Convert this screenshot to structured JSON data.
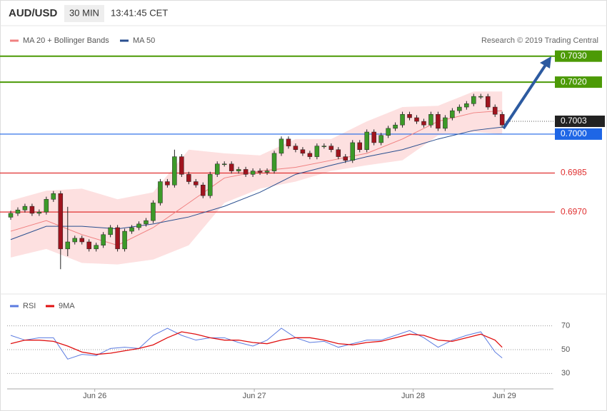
{
  "chart_data": [
    {
      "type": "candlestick",
      "title": "AUD/USD",
      "timeframe": "30 MIN",
      "time": "13:41:45 CET",
      "source": "Research © 2019 Trading Central",
      "up_color": "#3c9a28",
      "down_color": "#a0141e",
      "x": [
        0,
        1,
        2,
        3,
        4,
        5,
        6,
        7,
        8,
        9,
        10,
        11,
        12,
        13,
        14,
        15,
        16,
        17,
        18,
        19,
        20,
        21,
        22,
        23,
        24,
        25,
        26,
        27,
        28,
        29,
        30,
        31,
        32,
        33,
        34,
        35,
        36,
        37,
        38,
        39,
        40,
        41,
        42,
        43,
        44,
        45,
        46,
        47,
        48,
        49,
        50,
        51,
        52,
        53,
        54,
        55,
        56,
        57,
        58,
        59,
        60,
        61,
        62,
        63,
        64,
        65,
        66,
        67,
        68,
        69
      ],
      "open": [
        0.6968,
        0.69695,
        0.69708,
        0.69722,
        0.69695,
        0.697,
        0.69749,
        0.69771,
        0.69558,
        0.69585,
        0.69599,
        0.69585,
        0.69558,
        0.69572,
        0.69613,
        0.6964,
        0.69558,
        0.69626,
        0.6964,
        0.69654,
        0.69667,
        0.69735,
        0.69817,
        0.69804,
        0.69913,
        0.69845,
        0.69817,
        0.69804,
        0.69763,
        0.69845,
        0.69885,
        0.69885,
        0.69858,
        0.69864,
        0.69845,
        0.69858,
        0.69853,
        0.69858,
        0.69926,
        0.69981,
        0.69954,
        0.6994,
        0.69926,
        0.69913,
        0.69954,
        0.69954,
        0.6994,
        0.69913,
        0.69899,
        0.69967,
        0.6994,
        0.70008,
        0.69967,
        0.69995,
        0.70022,
        0.70035,
        0.70076,
        0.70063,
        0.70049,
        0.70035,
        0.70076,
        0.70022,
        0.70063,
        0.7009,
        0.70104,
        0.70117,
        0.70145,
        0.70145,
        0.70104,
        0.70076
      ],
      "high": [
        0.69705,
        0.69718,
        0.69732,
        0.69732,
        0.6971,
        0.69759,
        0.69781,
        0.69781,
        0.6972,
        0.69609,
        0.69609,
        0.69595,
        0.69582,
        0.69623,
        0.6965,
        0.6965,
        0.69636,
        0.6965,
        0.69664,
        0.69677,
        0.69745,
        0.69827,
        0.69827,
        0.6994,
        0.69923,
        0.69855,
        0.69827,
        0.69814,
        0.69855,
        0.69895,
        0.69895,
        0.69895,
        0.69874,
        0.69874,
        0.69868,
        0.69868,
        0.69868,
        0.69936,
        0.69991,
        0.69991,
        0.69964,
        0.6995,
        0.69936,
        0.69964,
        0.69964,
        0.69964,
        0.6995,
        0.69923,
        0.69977,
        0.69977,
        0.70018,
        0.70018,
        0.70005,
        0.70032,
        0.70045,
        0.70086,
        0.70086,
        0.70073,
        0.70059,
        0.70086,
        0.70086,
        0.70073,
        0.701,
        0.70114,
        0.70127,
        0.70155,
        0.70155,
        0.70155,
        0.70114,
        0.70086
      ],
      "low": [
        0.6967,
        0.69685,
        0.69698,
        0.69685,
        0.69685,
        0.6969,
        0.69739,
        0.6948,
        0.6953,
        0.69575,
        0.69575,
        0.69548,
        0.69548,
        0.69562,
        0.69603,
        0.69548,
        0.69548,
        0.69616,
        0.6963,
        0.69644,
        0.69657,
        0.69725,
        0.69794,
        0.69794,
        0.69835,
        0.69807,
        0.69794,
        0.69753,
        0.69753,
        0.69835,
        0.69875,
        0.69848,
        0.69848,
        0.69835,
        0.69835,
        0.69843,
        0.69843,
        0.69848,
        0.69916,
        0.69944,
        0.6993,
        0.69916,
        0.69903,
        0.69903,
        0.69944,
        0.6993,
        0.69903,
        0.69889,
        0.69889,
        0.6993,
        0.6993,
        0.69957,
        0.69957,
        0.69985,
        0.70012,
        0.70025,
        0.70053,
        0.70039,
        0.70025,
        0.70025,
        0.70012,
        0.70012,
        0.70053,
        0.7008,
        0.70094,
        0.70107,
        0.70135,
        0.70094,
        0.70066,
        0.70025
      ],
      "close": [
        0.69695,
        0.69708,
        0.69722,
        0.69695,
        0.697,
        0.69749,
        0.69771,
        0.69558,
        0.69585,
        0.69599,
        0.69585,
        0.69558,
        0.69572,
        0.69613,
        0.6964,
        0.69558,
        0.69626,
        0.6964,
        0.69654,
        0.69667,
        0.69735,
        0.69817,
        0.69804,
        0.69913,
        0.69845,
        0.69817,
        0.69804,
        0.69763,
        0.69845,
        0.69885,
        0.69885,
        0.69858,
        0.69864,
        0.69845,
        0.69858,
        0.69853,
        0.69858,
        0.69926,
        0.69981,
        0.69954,
        0.6994,
        0.69926,
        0.69913,
        0.69954,
        0.69954,
        0.6994,
        0.69913,
        0.69899,
        0.69967,
        0.6994,
        0.70008,
        0.69967,
        0.69995,
        0.70022,
        0.70035,
        0.70076,
        0.70063,
        0.70049,
        0.70035,
        0.70076,
        0.70022,
        0.70063,
        0.7009,
        0.70104,
        0.70117,
        0.70145,
        0.70145,
        0.70104,
        0.70076,
        0.70035
      ],
      "series": [
        {
          "name": "MA 20 + Bollinger Bands",
          "color": "#f08080",
          "band_color": "#fde0e0",
          "x": [
            0,
            5,
            10,
            15,
            20,
            25,
            30,
            35,
            40,
            45,
            50,
            55,
            60,
            65,
            69
          ],
          "values": [
            0.69626,
            0.69667,
            0.69613,
            0.69572,
            0.6964,
            0.69735,
            0.69831,
            0.69858,
            0.69872,
            0.69899,
            0.69926,
            0.69981,
            0.70049,
            0.70082,
            0.7009
          ],
          "upper": [
            0.69744,
            0.69782,
            0.6979,
            0.69749,
            0.69776,
            0.6994,
            0.69926,
            0.69918,
            0.69981,
            0.69981,
            0.70049,
            0.70104,
            0.70109,
            0.70164,
            0.70164
          ],
          "lower": [
            0.69525,
            0.69558,
            0.69504,
            0.69498,
            0.69517,
            0.69572,
            0.69735,
            0.6979,
            0.69817,
            0.69858,
            0.6988,
            0.69899,
            0.69995,
            0.70008,
            0.7
          ]
        },
        {
          "name": "MA 50",
          "color": "#2a4f8f",
          "x": [
            0,
            5,
            10,
            15,
            20,
            25,
            30,
            35,
            40,
            45,
            50,
            55,
            60,
            65,
            69
          ],
          "values": [
            0.69594,
            0.69645,
            0.69645,
            0.69635,
            0.69654,
            0.69681,
            0.69722,
            0.69776,
            0.69845,
            0.6988,
            0.69913,
            0.6994,
            0.69981,
            0.70014,
            0.70027
          ]
        }
      ],
      "levels": [
        {
          "value": 0.703,
          "label": "0.7030",
          "color": "#4c9a06",
          "boxed": true
        },
        {
          "value": 0.702,
          "label": "0.7020",
          "color": "#4c9a06",
          "boxed": true
        },
        {
          "value": 0.7,
          "label": "0.7000",
          "color": "#1e66e6",
          "boxed": true
        },
        {
          "value": 0.6985,
          "label": "0.6985",
          "color": "#e03030",
          "boxed": false
        },
        {
          "value": 0.697,
          "label": "0.6970",
          "color": "#e03030",
          "boxed": false
        }
      ],
      "current_price": {
        "value": 0.7003,
        "label": "0.7003",
        "color": "#222222"
      },
      "xlim": [
        -0.5,
        76.2
      ],
      "ylim": [
        0.6939,
        0.7042
      ]
    },
    {
      "type": "line",
      "x": [
        0,
        2,
        4,
        6,
        8,
        10,
        12,
        14,
        16,
        18,
        20,
        22,
        24,
        26,
        28,
        30,
        32,
        34,
        36,
        38,
        40,
        42,
        44,
        46,
        48,
        50,
        52,
        54,
        56,
        58,
        60,
        62,
        64,
        66,
        68,
        69
      ],
      "series": [
        {
          "name": "RSI",
          "color": "#5b7be0",
          "values": [
            62,
            58,
            60,
            60,
            42,
            46,
            45,
            51,
            52,
            51,
            62,
            68,
            62,
            58,
            60,
            60,
            56,
            53,
            58,
            68,
            60,
            56,
            57,
            52,
            55,
            58,
            58,
            62,
            66,
            60,
            52,
            58,
            62,
            65,
            48,
            43
          ]
        },
        {
          "name": "9MA",
          "color": "#e01010",
          "values": [
            55,
            58,
            58,
            57,
            53,
            48,
            46,
            47,
            49,
            51,
            54,
            60,
            65,
            63,
            60,
            58,
            58,
            56,
            55,
            58,
            60,
            60,
            58,
            55,
            54,
            56,
            57,
            60,
            63,
            62,
            58,
            57,
            60,
            63,
            58,
            52
          ]
        }
      ],
      "xlim": [
        -0.5,
        76.2
      ],
      "ylim": [
        20,
        80
      ],
      "yticks": [
        30,
        50,
        70
      ],
      "xticks": [
        {
          "value": 11.8,
          "label": "Jun 26"
        },
        {
          "value": 34.2,
          "label": "Jun 27"
        },
        {
          "value": 56.5,
          "label": "Jun 28"
        },
        {
          "value": 69.3,
          "label": "Jun 29"
        }
      ]
    }
  ]
}
